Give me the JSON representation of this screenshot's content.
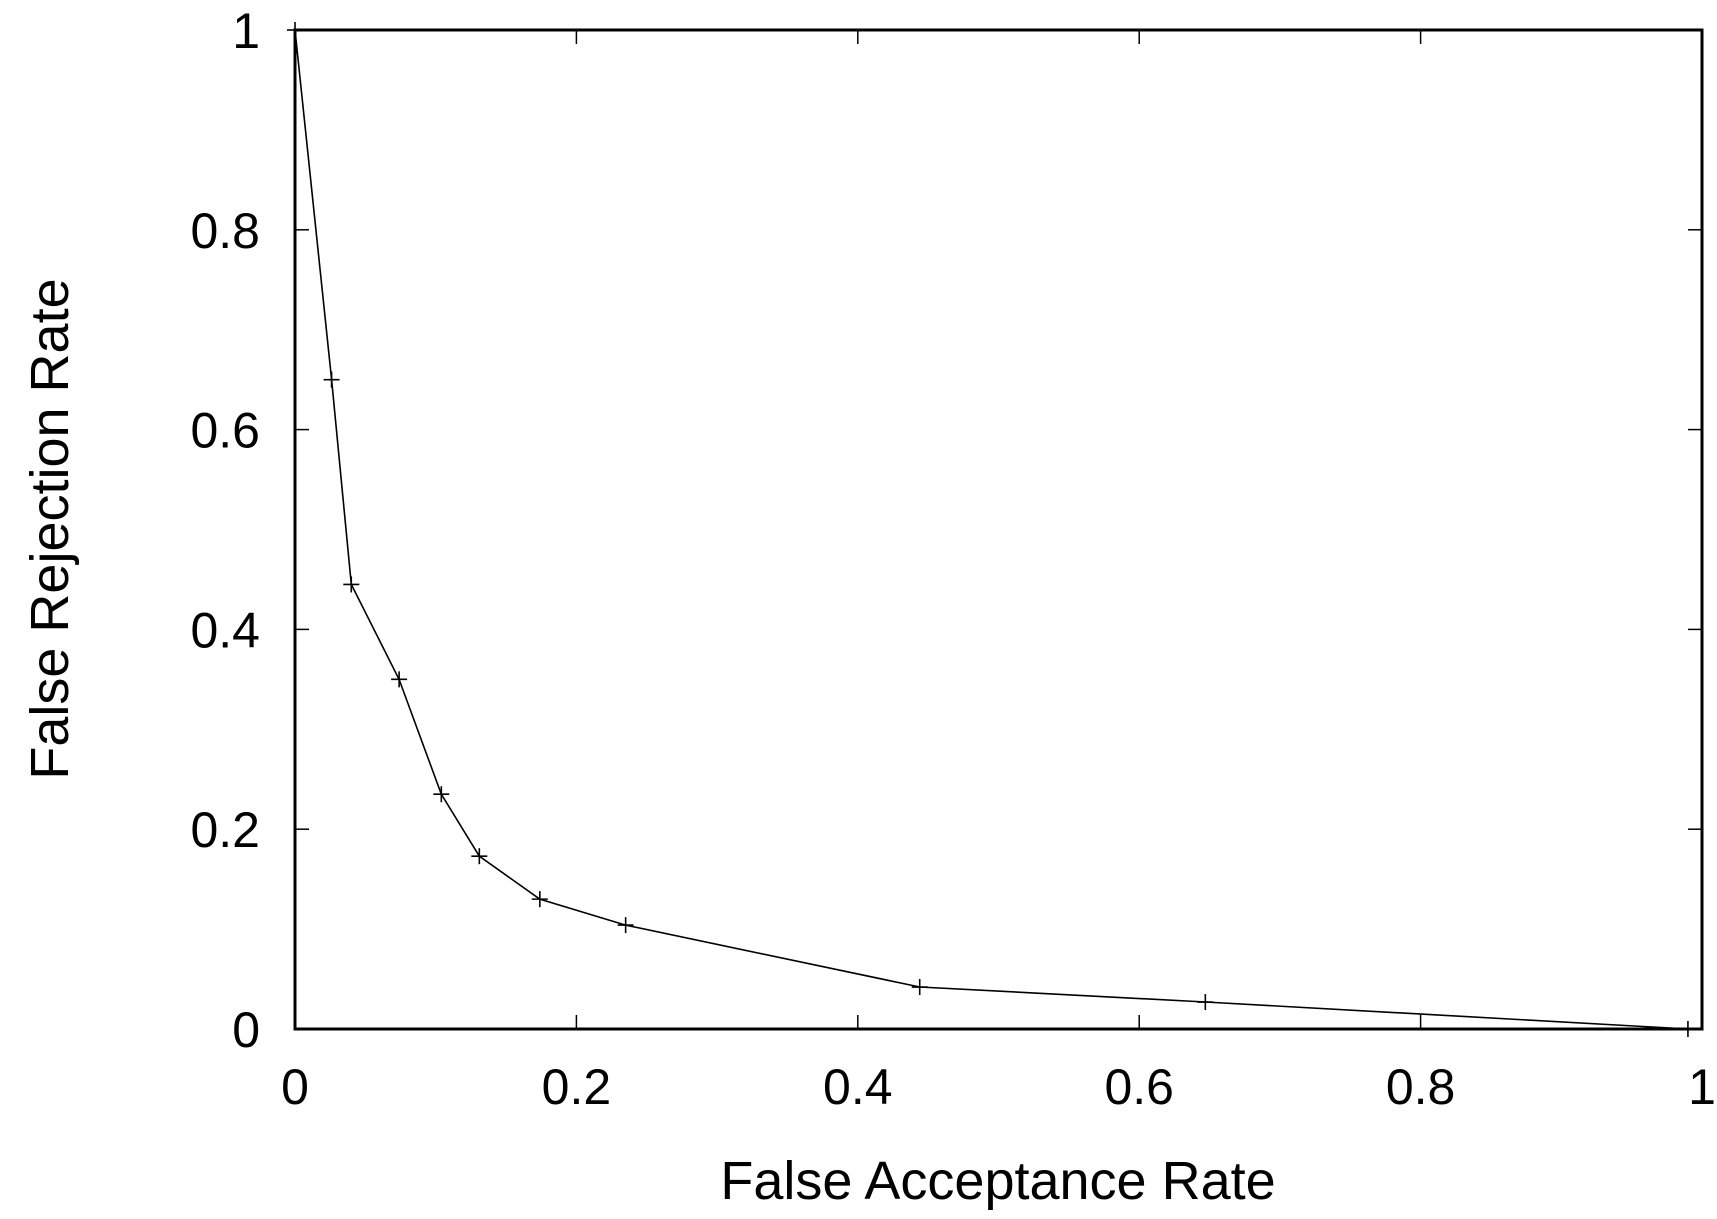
{
  "chart_data": {
    "type": "line",
    "title": "",
    "xlabel": "False Acceptance Rate",
    "ylabel": "False Rejection Rate",
    "xlim": [
      0,
      1
    ],
    "ylim": [
      0,
      1
    ],
    "x_ticks": [
      "0",
      "0.2",
      "0.4",
      "0.6",
      "0.8",
      "1"
    ],
    "y_ticks": [
      "0",
      "0.2",
      "0.4",
      "0.6",
      "0.8",
      "1"
    ],
    "grid": false,
    "legend": "none",
    "line_color": "#000000",
    "marker": "plus",
    "series": [
      {
        "x": [
          0.0,
          0.026,
          0.04,
          0.074,
          0.104,
          0.131,
          0.174,
          0.235,
          0.444,
          0.647,
          0.99
        ],
        "y": [
          1.0,
          0.65,
          0.445,
          0.35,
          0.235,
          0.173,
          0.13,
          0.104,
          0.042,
          0.027,
          0.0
        ]
      }
    ]
  }
}
